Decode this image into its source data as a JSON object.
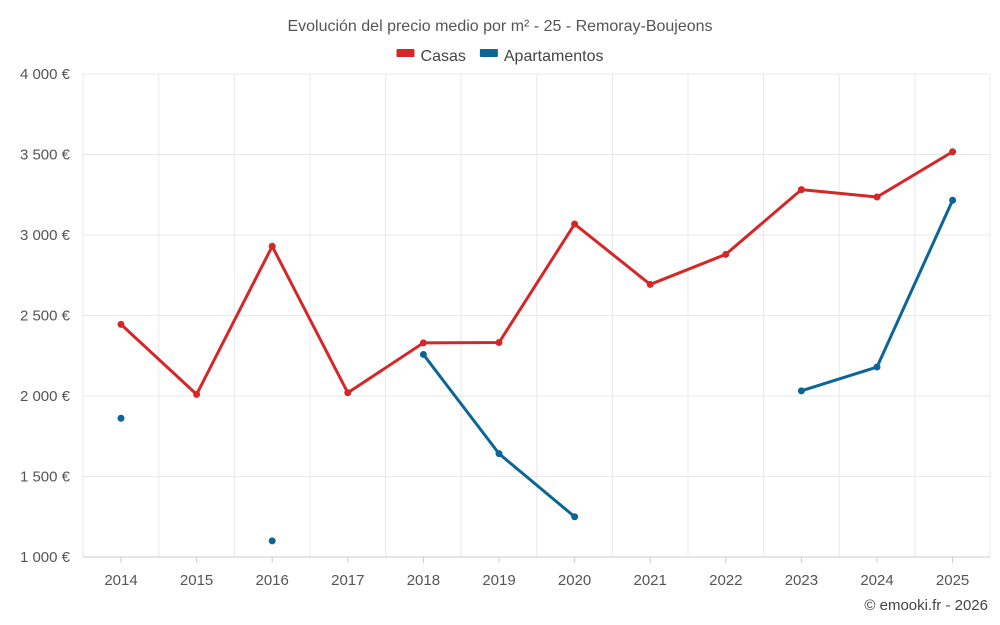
{
  "chart_data": {
    "type": "line",
    "title": "Evolución del precio medio por m² - 25 - Remoray-Boujeons",
    "categories": [
      "2014",
      "2015",
      "2016",
      "2017",
      "2018",
      "2019",
      "2020",
      "2021",
      "2022",
      "2023",
      "2024",
      "2025"
    ],
    "series": [
      {
        "name": "Casas",
        "color": "#d62728",
        "values": [
          2445,
          2010,
          2930,
          2020,
          2330,
          2332,
          3068,
          2693,
          2880,
          3282,
          3236,
          3517
        ]
      },
      {
        "name": "Apartamentos",
        "color": "#0b6597",
        "values": [
          1862,
          null,
          1100,
          null,
          2258,
          1642,
          1250,
          null,
          null,
          2032,
          2180,
          3216
        ]
      }
    ],
    "ylim": [
      1000,
      4000
    ],
    "yticks": [
      1000,
      1500,
      2000,
      2500,
      3000,
      3500,
      4000
    ],
    "ytick_labels": [
      "1 000 €",
      "1 500 €",
      "2 000 €",
      "2 500 €",
      "3 000 €",
      "3 500 €",
      "4 000 €"
    ],
    "grid": true,
    "legend": "top-center",
    "xlabel": "",
    "ylabel": "",
    "credit": "© emooki.fr - 2026"
  }
}
